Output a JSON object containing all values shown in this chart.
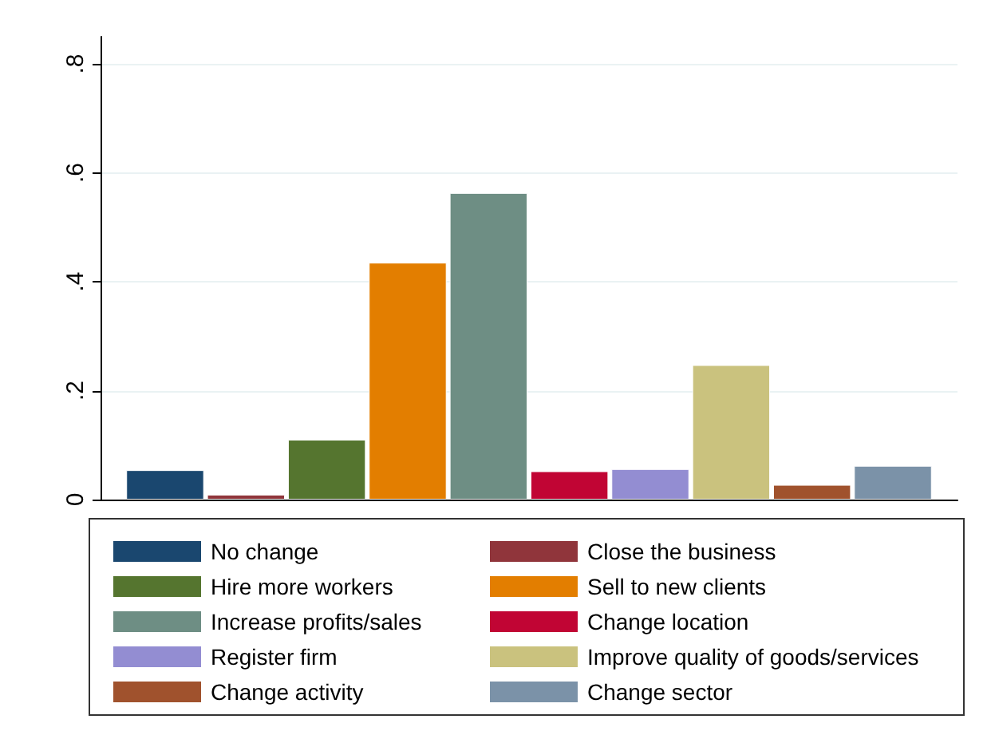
{
  "chart_data": {
    "type": "bar",
    "categories": [
      null
    ],
    "series": [
      {
        "name": "No change",
        "color": "#1a476f",
        "values": [
          0.054
        ]
      },
      {
        "name": "Close the business",
        "color": "#90353b",
        "values": [
          0.009
        ]
      },
      {
        "name": "Hire more workers",
        "color": "#55752f",
        "values": [
          0.11
        ]
      },
      {
        "name": "Sell to new clients",
        "color": "#e37e00",
        "values": [
          0.435
        ]
      },
      {
        "name": "Increase profits/sales",
        "color": "#6e8e84",
        "values": [
          0.563
        ]
      },
      {
        "name": "Change location",
        "color": "#c10534",
        "values": [
          0.052
        ]
      },
      {
        "name": "Register firm",
        "color": "#938dd2",
        "values": [
          0.056
        ]
      },
      {
        "name": "Improve quality of goods/services",
        "color": "#cac27e",
        "values": [
          0.247
        ]
      },
      {
        "name": "Change activity",
        "color": "#a0522d",
        "values": [
          0.027
        ]
      },
      {
        "name": "Change sector",
        "color": "#7b92a8",
        "values": [
          0.062
        ]
      }
    ],
    "ylim": [
      0,
      0.85
    ],
    "yticks": [
      0,
      {
        "value": 0.2,
        "label": ".2"
      },
      {
        "value": 0.4,
        "label": ".4"
      },
      {
        "value": 0.6,
        "label": ".6"
      },
      {
        "value": 0.8,
        "label": ".8"
      }
    ],
    "grid": "y",
    "legend": "bottom"
  }
}
